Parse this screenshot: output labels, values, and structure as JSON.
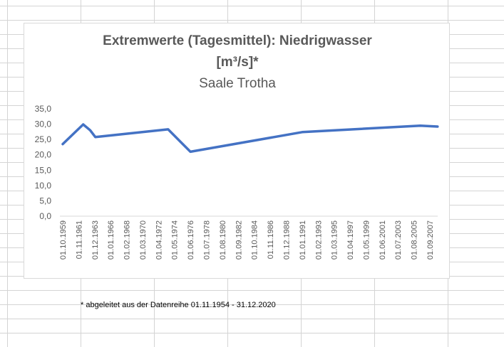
{
  "chart_data": {
    "type": "line",
    "title_line1": "Extremwerte (Tagesmittel): Niedrigwasser",
    "title_line2": "[m³/s]*",
    "subtitle": "Saale Trotha",
    "xlabel": "",
    "ylabel": "",
    "ylim": [
      0,
      35
    ],
    "yticks": [
      "35,0",
      "30,0",
      "25,0",
      "20,0",
      "15,0",
      "10,0",
      "5,0",
      "0,0"
    ],
    "grid": false,
    "legend": "none",
    "line_color": "#4472c4",
    "categories": [
      "01.10.1959",
      "01.11.1961",
      "01.12.1963",
      "01.01.1966",
      "01.02.1968",
      "01.03.1970",
      "01.04.1972",
      "01.05.1974",
      "01.06.1976",
      "01.07.1978",
      "01.08.1980",
      "01.09.1982",
      "01.10.1984",
      "01.11.1986",
      "01.12.1988",
      "01.01.1991",
      "01.02.1993",
      "01.03.1995",
      "01.04.1997",
      "01.05.1999",
      "01.06.2001",
      "01.07.2003",
      "01.08.2005",
      "01.09.2007"
    ],
    "series": [
      {
        "points": [
          {
            "x": "01.10.1959",
            "y": 23.5
          },
          {
            "x": "01.06.1962",
            "y": 29.9
          },
          {
            "x": "01.05.1963",
            "y": 28.0
          },
          {
            "x": "01.01.1964",
            "y": 25.8
          },
          {
            "x": "01.07.1973",
            "y": 28.3
          },
          {
            "x": "01.06.1976",
            "y": 21.0
          },
          {
            "x": "01.01.1991",
            "y": 27.4
          },
          {
            "x": "01.06.2006",
            "y": 29.5
          },
          {
            "x": "01.09.2008",
            "y": 29.2
          }
        ]
      }
    ]
  },
  "footnote": "* abgeleitet aus der Datenreihe 01.11.1954 - 31.12.2020"
}
